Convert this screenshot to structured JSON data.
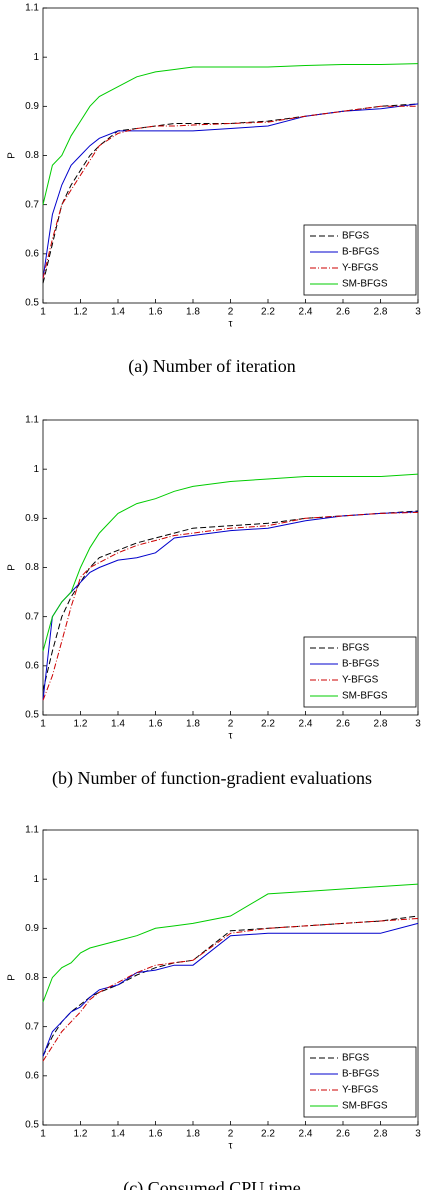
{
  "chart_data": [
    {
      "type": "line",
      "caption": "(a) Number of iteration",
      "xlabel": "τ",
      "ylabel": "P",
      "x": [
        1,
        1.05,
        1.1,
        1.15,
        1.2,
        1.25,
        1.3,
        1.4,
        1.5,
        1.6,
        1.7,
        1.8,
        2,
        2.2,
        2.4,
        2.6,
        2.8,
        3
      ],
      "xlim": [
        1,
        3
      ],
      "xticks": [
        1,
        1.2,
        1.4,
        1.6,
        1.8,
        2,
        2.2,
        2.4,
        2.6,
        2.8,
        3
      ],
      "ylim": [
        0.5,
        1.1
      ],
      "yticks": [
        0.5,
        0.6,
        0.7,
        0.8,
        0.9,
        1,
        1.1
      ],
      "legend": "lower right",
      "series": [
        {
          "name": "BFGS",
          "color": "#000000",
          "values": [
            0.54,
            0.62,
            0.7,
            0.74,
            0.77,
            0.8,
            0.82,
            0.85,
            0.855,
            0.86,
            0.865,
            0.865,
            0.865,
            0.87,
            0.88,
            0.89,
            0.9,
            0.905
          ]
        },
        {
          "name": "B-BFGS",
          "color": "#0000cc",
          "values": [
            0.55,
            0.68,
            0.74,
            0.78,
            0.8,
            0.82,
            0.835,
            0.85,
            0.85,
            0.85,
            0.85,
            0.85,
            0.855,
            0.86,
            0.88,
            0.89,
            0.895,
            0.905
          ]
        },
        {
          "name": "Y-BFGS",
          "color": "#cc0000",
          "values": [
            0.55,
            0.63,
            0.7,
            0.73,
            0.76,
            0.79,
            0.82,
            0.845,
            0.855,
            0.86,
            0.86,
            0.862,
            0.865,
            0.868,
            0.88,
            0.89,
            0.9,
            0.9
          ]
        },
        {
          "name": "SM-BFGS",
          "color": "#00cc00",
          "values": [
            0.7,
            0.78,
            0.8,
            0.84,
            0.87,
            0.9,
            0.92,
            0.94,
            0.96,
            0.97,
            0.975,
            0.98,
            0.98,
            0.98,
            0.983,
            0.985,
            0.985,
            0.987
          ]
        }
      ]
    },
    {
      "type": "line",
      "caption": "(b) Number of function-gradient evaluations",
      "xlabel": "τ",
      "ylabel": "P",
      "x": [
        1,
        1.05,
        1.1,
        1.15,
        1.2,
        1.25,
        1.3,
        1.4,
        1.5,
        1.6,
        1.7,
        1.8,
        2,
        2.2,
        2.4,
        2.6,
        2.8,
        3
      ],
      "xlim": [
        1,
        3
      ],
      "xticks": [
        1,
        1.2,
        1.4,
        1.6,
        1.8,
        2,
        2.2,
        2.4,
        2.6,
        2.8,
        3
      ],
      "ylim": [
        0.5,
        1.1
      ],
      "yticks": [
        0.5,
        0.6,
        0.7,
        0.8,
        0.9,
        1,
        1.1
      ],
      "legend": "lower right",
      "series": [
        {
          "name": "BFGS",
          "color": "#000000",
          "values": [
            0.55,
            0.63,
            0.7,
            0.74,
            0.77,
            0.8,
            0.82,
            0.835,
            0.85,
            0.86,
            0.87,
            0.88,
            0.885,
            0.89,
            0.9,
            0.905,
            0.91,
            0.915
          ]
        },
        {
          "name": "B-BFGS",
          "color": "#0000cc",
          "values": [
            0.53,
            0.7,
            0.73,
            0.75,
            0.77,
            0.79,
            0.8,
            0.815,
            0.82,
            0.83,
            0.86,
            0.865,
            0.875,
            0.88,
            0.895,
            0.905,
            0.91,
            0.913
          ]
        },
        {
          "name": "Y-BFGS",
          "color": "#cc0000",
          "values": [
            0.53,
            0.58,
            0.65,
            0.72,
            0.78,
            0.8,
            0.81,
            0.83,
            0.845,
            0.855,
            0.865,
            0.87,
            0.88,
            0.885,
            0.9,
            0.905,
            0.91,
            0.912
          ]
        },
        {
          "name": "SM-BFGS",
          "color": "#00cc00",
          "values": [
            0.63,
            0.7,
            0.73,
            0.75,
            0.8,
            0.84,
            0.87,
            0.91,
            0.93,
            0.94,
            0.955,
            0.965,
            0.975,
            0.98,
            0.985,
            0.985,
            0.985,
            0.99
          ]
        }
      ]
    },
    {
      "type": "line",
      "caption": "(c) Consumed CPU time",
      "xlabel": "τ",
      "ylabel": "P",
      "x": [
        1,
        1.05,
        1.1,
        1.15,
        1.2,
        1.25,
        1.3,
        1.4,
        1.5,
        1.6,
        1.7,
        1.8,
        2,
        2.2,
        2.4,
        2.6,
        2.8,
        3
      ],
      "xlim": [
        1,
        3
      ],
      "xticks": [
        1,
        1.2,
        1.4,
        1.6,
        1.8,
        2,
        2.2,
        2.4,
        2.6,
        2.8,
        3
      ],
      "ylim": [
        0.5,
        1.1
      ],
      "yticks": [
        0.5,
        0.6,
        0.7,
        0.8,
        0.9,
        1,
        1.1
      ],
      "legend": "lower right",
      "series": [
        {
          "name": "BFGS",
          "color": "#000000",
          "values": [
            0.64,
            0.68,
            0.71,
            0.73,
            0.745,
            0.76,
            0.77,
            0.785,
            0.805,
            0.82,
            0.83,
            0.835,
            0.895,
            0.9,
            0.905,
            0.91,
            0.915,
            0.925
          ]
        },
        {
          "name": "B-BFGS",
          "color": "#0000cc",
          "values": [
            0.64,
            0.69,
            0.71,
            0.73,
            0.74,
            0.76,
            0.775,
            0.785,
            0.81,
            0.815,
            0.825,
            0.825,
            0.885,
            0.89,
            0.89,
            0.89,
            0.89,
            0.91
          ]
        },
        {
          "name": "Y-BFGS",
          "color": "#cc0000",
          "values": [
            0.63,
            0.66,
            0.69,
            0.71,
            0.73,
            0.755,
            0.77,
            0.79,
            0.81,
            0.825,
            0.83,
            0.835,
            0.89,
            0.9,
            0.905,
            0.91,
            0.915,
            0.92
          ]
        },
        {
          "name": "SM-BFGS",
          "color": "#00cc00",
          "values": [
            0.75,
            0.8,
            0.82,
            0.83,
            0.85,
            0.86,
            0.865,
            0.875,
            0.885,
            0.9,
            0.905,
            0.91,
            0.925,
            0.97,
            0.975,
            0.98,
            0.985,
            0.99
          ]
        }
      ]
    }
  ]
}
